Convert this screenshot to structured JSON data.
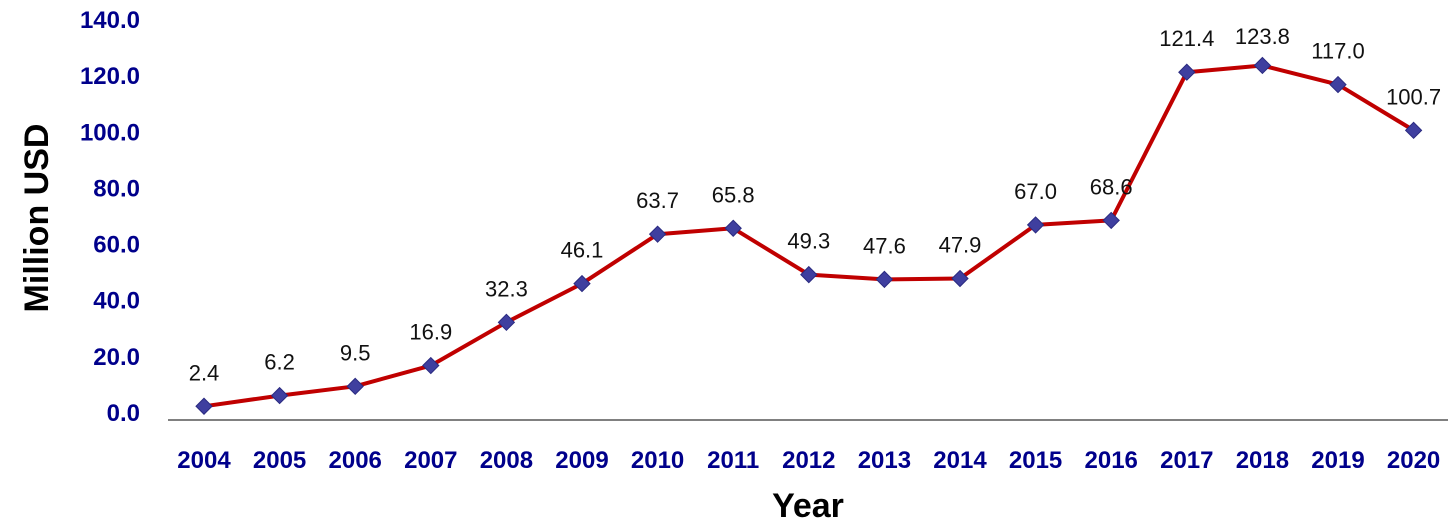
{
  "chart_data": {
    "type": "line",
    "title": "",
    "xlabel": "Year",
    "ylabel": "Million USD",
    "ylim": [
      0,
      140
    ],
    "ytick_values": [
      0,
      20,
      40,
      60,
      80,
      100,
      120,
      140
    ],
    "ytick_labels": [
      "0.0",
      "20.0",
      "40.0",
      "60.0",
      "80.0",
      "100.0",
      "120.0",
      "140.0"
    ],
    "categories": [
      "2004",
      "2005",
      "2006",
      "2007",
      "2008",
      "2009",
      "2010",
      "2011",
      "2012",
      "2013",
      "2014",
      "2015",
      "2016",
      "2017",
      "2018",
      "2019",
      "2020"
    ],
    "series": [
      {
        "values": [
          2.4,
          6.2,
          9.5,
          16.9,
          32.3,
          46.1,
          63.7,
          65.8,
          49.3,
          47.6,
          47.9,
          67.0,
          68.6,
          121.4,
          123.8,
          117.0,
          100.7
        ],
        "value_labels": [
          "2.4",
          "6.2",
          "9.5",
          "16.9",
          "32.3",
          "46.1",
          "63.7",
          "65.8",
          "49.3",
          "47.6",
          "47.9",
          "67.0",
          "68.6",
          "121.4",
          "123.8",
          "117.0",
          "100.7"
        ],
        "line_color": "#c00000",
        "marker_color": "#3f3f9f",
        "marker": "diamond"
      }
    ],
    "grid": false,
    "legend": "none"
  }
}
